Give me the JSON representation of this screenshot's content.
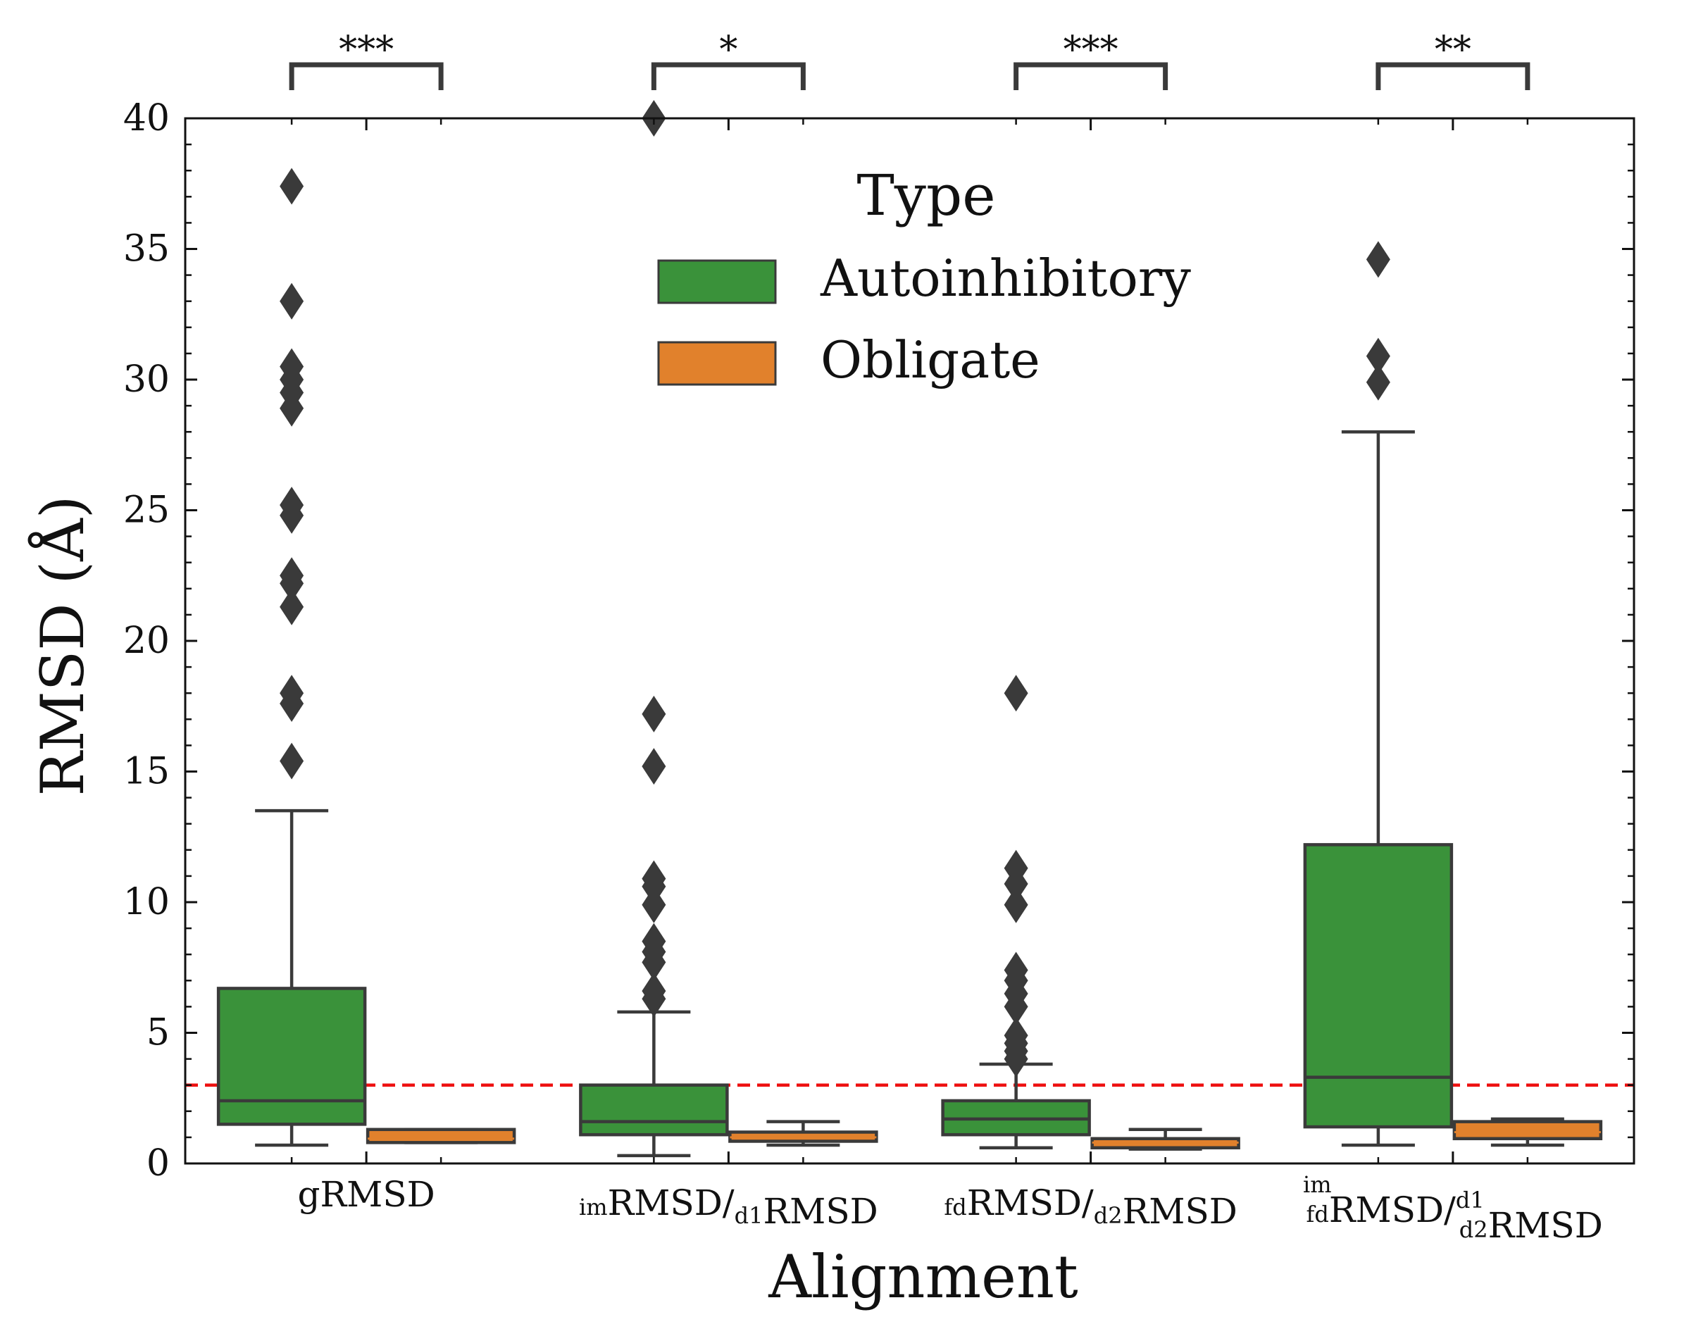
{
  "chart_data": {
    "type": "box",
    "xlabel": "Alignment",
    "ylabel": "RMSD (Å)",
    "ylim": [
      0,
      40
    ],
    "yticks": [
      0,
      5,
      10,
      15,
      20,
      25,
      30,
      35,
      40
    ],
    "categories": [
      {
        "key": "g",
        "main": "gRMSD",
        "parts": [
          {
            "t": "gRMSD",
            "s": "n"
          }
        ]
      },
      {
        "key": "imd1",
        "main": "RMSD/",
        "parts": [
          {
            "t": "im",
            "s": "sub"
          },
          {
            "t": "RMSD/",
            "s": "n"
          },
          {
            "t": "d1",
            "s": "sub"
          },
          {
            "t": "RMSD",
            "s": "n"
          }
        ]
      },
      {
        "key": "fdd2",
        "main": "RMSD/",
        "parts": [
          {
            "t": "fd",
            "s": "sub"
          },
          {
            "t": "RMSD/",
            "s": "n"
          },
          {
            "t": "d2",
            "s": "sub"
          },
          {
            "t": "RMSD",
            "s": "n"
          }
        ]
      },
      {
        "key": "both",
        "main": "RMSD/",
        "parts": [
          {
            "t": "im",
            "s": "sup",
            "u": "fd"
          },
          {
            "t": "RMSD/",
            "s": "n"
          },
          {
            "t": "d1",
            "s": "sup",
            "u": "d2"
          },
          {
            "t": "RMSD",
            "s": "n"
          }
        ]
      }
    ],
    "legend": {
      "title": "Type",
      "placement": "upper-center",
      "entries": [
        "Autoinhibitory",
        "Obligate"
      ]
    },
    "colors": {
      "Autoinhibitory": "#3a923a",
      "Obligate": "#e1812c",
      "edge": "#3a3a3a",
      "threshold": "#ee1111"
    },
    "threshold": 3.0,
    "series": [
      {
        "name": "Autoinhibitory",
        "boxes": [
          {
            "q1": 1.5,
            "median": 2.4,
            "q3": 6.7,
            "whislo": 0.7,
            "whishi": 13.5,
            "fliers": [
              15.4,
              17.6,
              18.0,
              21.3,
              22.2,
              22.5,
              24.8,
              25.2,
              28.9,
              29.5,
              30.0,
              30.5,
              33.0,
              37.4
            ]
          },
          {
            "q1": 1.1,
            "median": 1.6,
            "q3": 3.0,
            "whislo": 0.3,
            "whishi": 5.8,
            "fliers": [
              6.3,
              6.6,
              7.7,
              8.1,
              8.5,
              9.9,
              10.6,
              10.9,
              15.2,
              17.2,
              40.0
            ]
          },
          {
            "q1": 1.1,
            "median": 1.7,
            "q3": 2.4,
            "whislo": 0.6,
            "whishi": 3.8,
            "fliers": [
              4.0,
              4.3,
              4.6,
              4.9,
              6.0,
              6.5,
              7.0,
              7.4,
              9.9,
              10.7,
              11.3,
              18.0
            ]
          },
          {
            "q1": 1.4,
            "median": 3.3,
            "q3": 12.2,
            "whislo": 0.7,
            "whishi": 28.0,
            "fliers": [
              29.9,
              30.9,
              34.6
            ]
          }
        ]
      },
      {
        "name": "Obligate",
        "boxes": [
          {
            "q1": 0.8,
            "median": 0.95,
            "q3": 1.3,
            "whislo": 0.8,
            "whishi": 1.3,
            "fliers": []
          },
          {
            "q1": 0.85,
            "median": 1.0,
            "q3": 1.2,
            "whislo": 0.7,
            "whishi": 1.6,
            "fliers": []
          },
          {
            "q1": 0.6,
            "median": 0.8,
            "q3": 0.95,
            "whislo": 0.55,
            "whishi": 1.3,
            "fliers": []
          },
          {
            "q1": 0.95,
            "median": 1.2,
            "q3": 1.6,
            "whislo": 0.7,
            "whishi": 1.7,
            "fliers": []
          }
        ]
      }
    ],
    "significance": [
      "***",
      "*",
      "***",
      "**"
    ]
  }
}
